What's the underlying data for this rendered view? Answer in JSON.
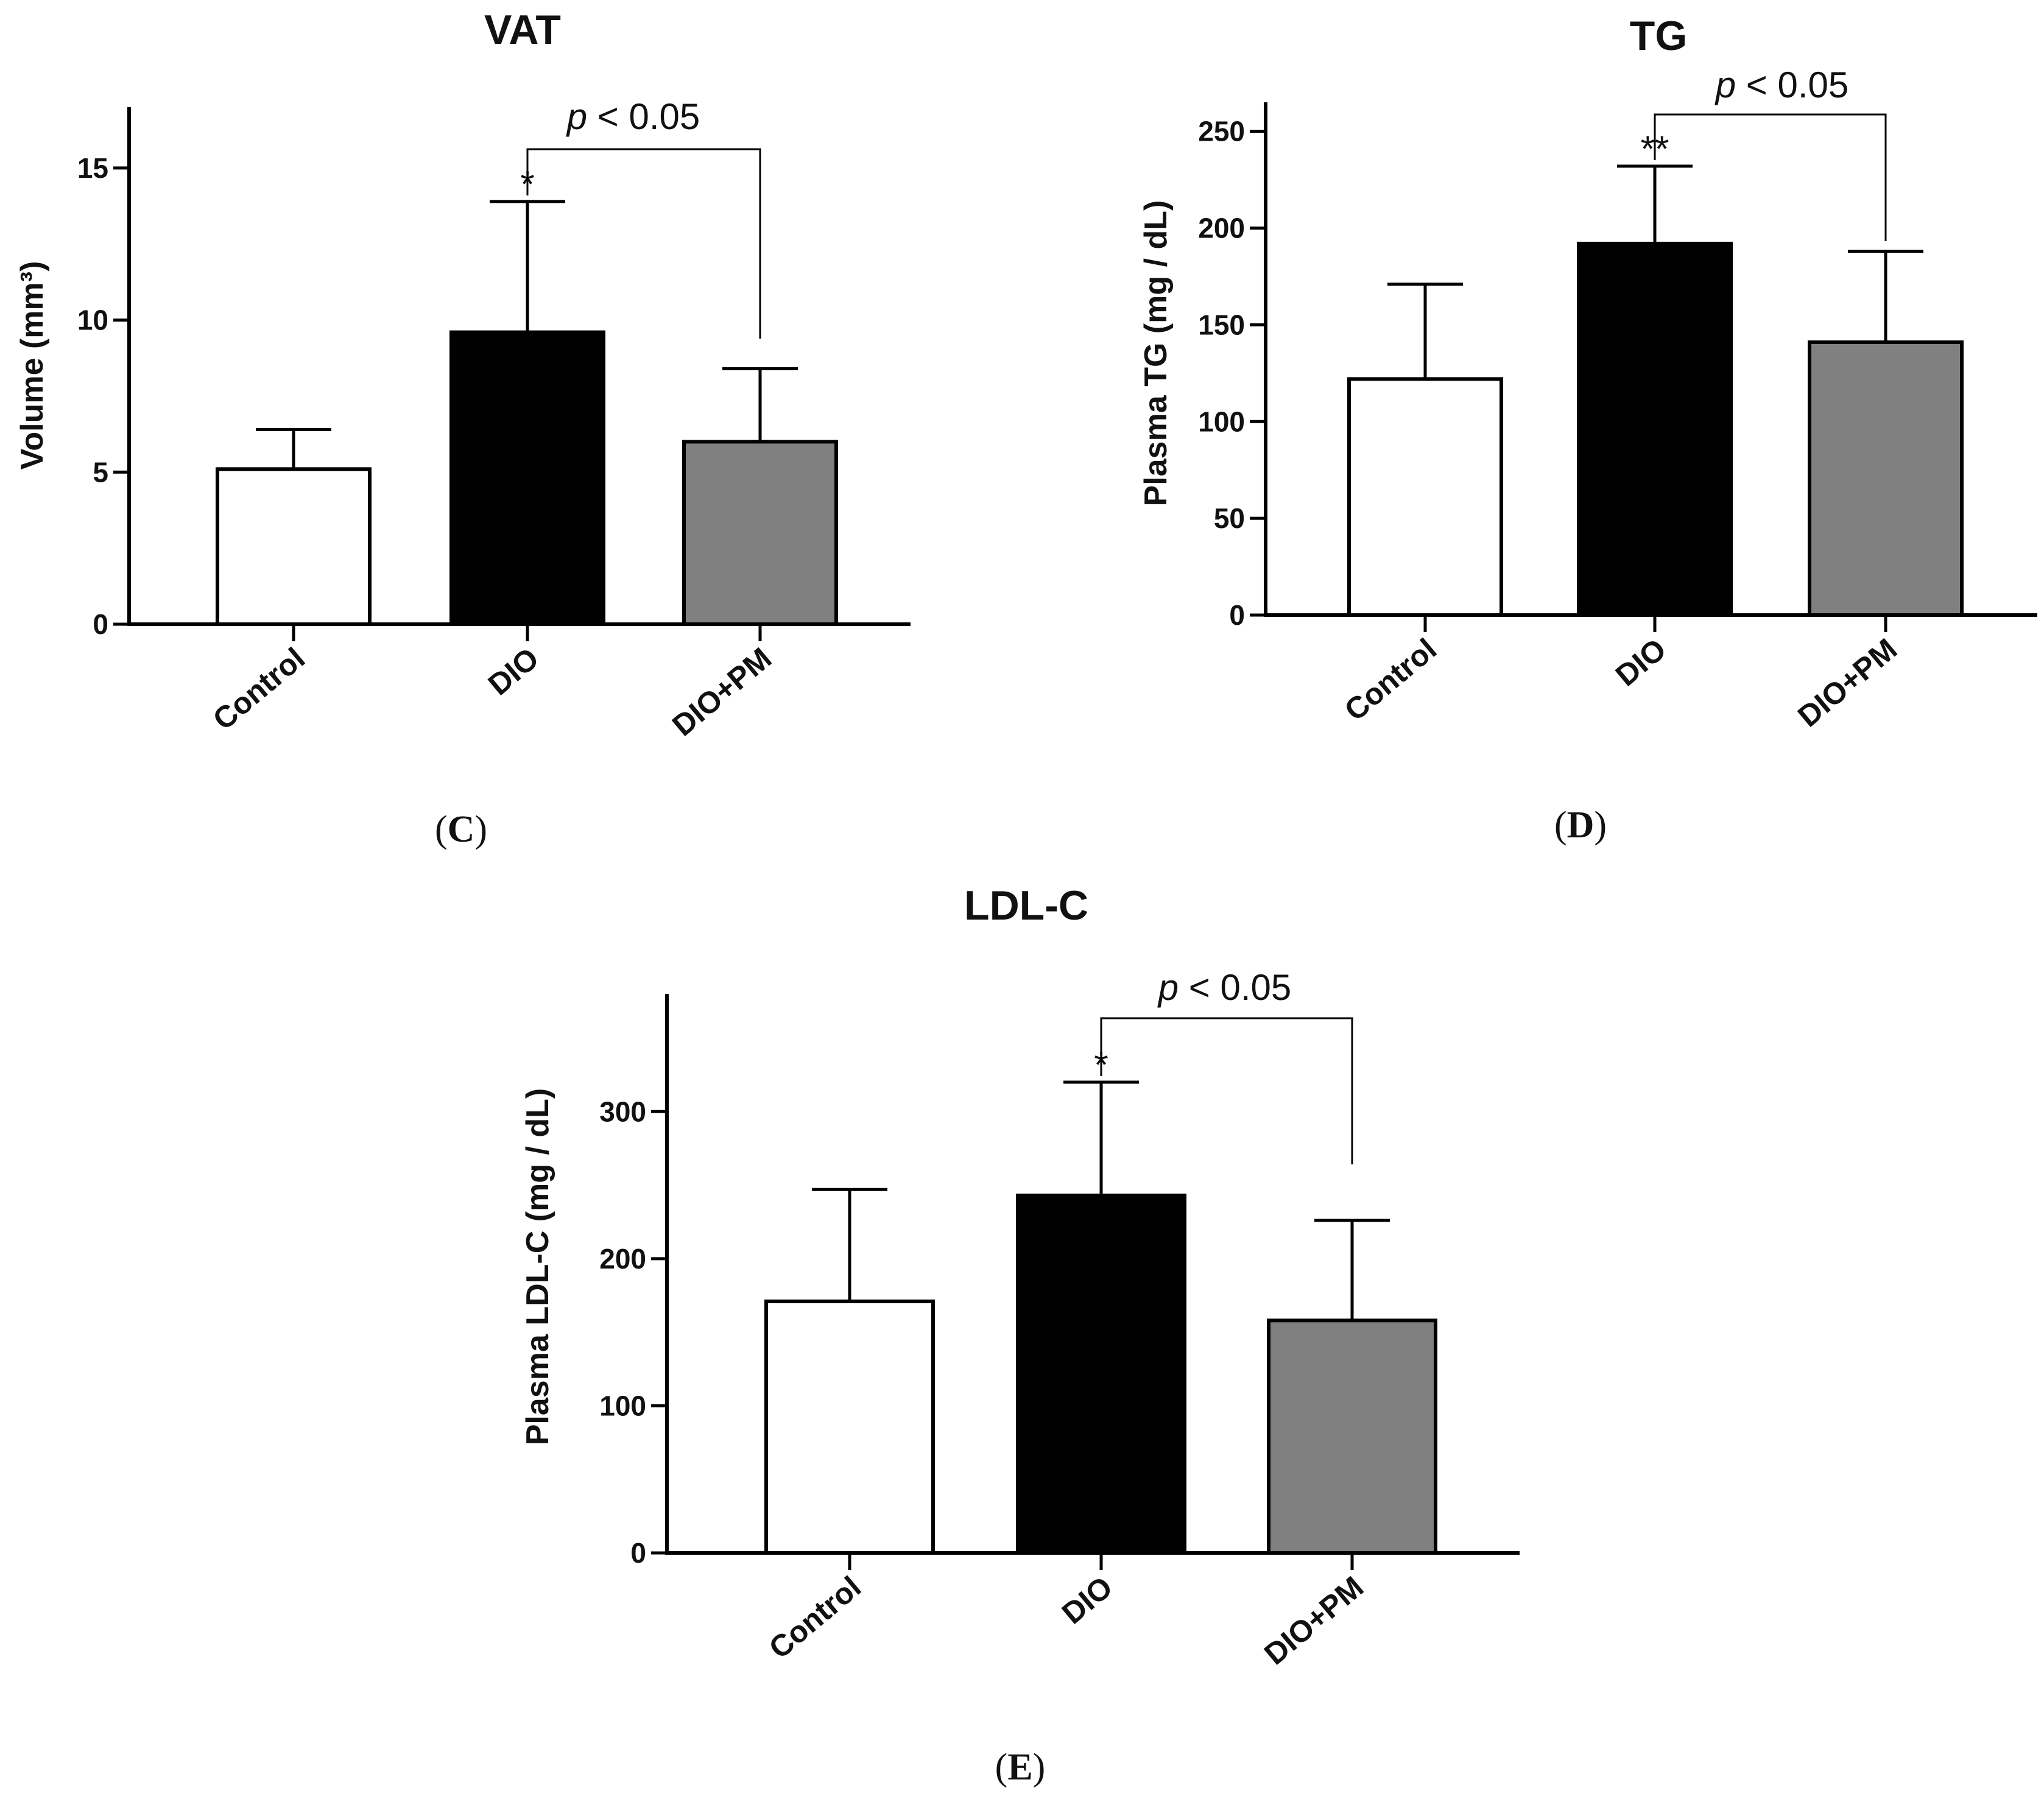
{
  "colors": {
    "control": "#ffffff",
    "dio": "#000000",
    "dio_pm": "#808080",
    "axis": "#000000"
  },
  "chart_data": [
    {
      "id": "C",
      "type": "bar",
      "panel_label": "(C)",
      "title": "VAT",
      "ylabel": "Volume (mm³)",
      "xlabel": "",
      "categories": [
        "Control",
        "DIO",
        "DIO+PM"
      ],
      "values": [
        5.1,
        9.6,
        6.0
      ],
      "errors": [
        1.3,
        4.3,
        2.4
      ],
      "ylim": [
        0,
        17
      ],
      "yticks": [
        0,
        5,
        10,
        15
      ],
      "grid": false,
      "annotations": [
        {
          "type": "star",
          "category": "DIO",
          "text": "*"
        },
        {
          "type": "bracket",
          "from": "DIO",
          "to": "DIO+PM",
          "text": "p < 0.05",
          "p": "p",
          "rest": " < 0.05"
        }
      ]
    },
    {
      "id": "D",
      "type": "bar",
      "panel_label": "(D)",
      "title": "TG",
      "ylabel": "Plasma TG (mg / dL)",
      "xlabel": "",
      "categories": [
        "Control",
        "DIO",
        "DIO+PM"
      ],
      "values": [
        122,
        192,
        141
      ],
      "errors": [
        49,
        40,
        47
      ],
      "ylim": [
        0,
        265
      ],
      "yticks": [
        0,
        50,
        100,
        150,
        200,
        250
      ],
      "grid": false,
      "annotations": [
        {
          "type": "star",
          "category": "DIO",
          "text": "**"
        },
        {
          "type": "bracket",
          "from": "DIO",
          "to": "DIO+PM",
          "text": "p < 0.05",
          "p": "p",
          "rest": " < 0.05"
        }
      ]
    },
    {
      "id": "E",
      "type": "bar",
      "panel_label": "(E)",
      "title": "LDL-C",
      "ylabel": "Plasma LDL-C (mg / dL)",
      "xlabel": "",
      "categories": [
        "Control",
        "DIO",
        "DIO+PM"
      ],
      "values": [
        171,
        243,
        158
      ],
      "errors": [
        76,
        77,
        68
      ],
      "ylim": [
        0,
        380
      ],
      "yticks": [
        0,
        100,
        200,
        300
      ],
      "grid": false,
      "annotations": [
        {
          "type": "star",
          "category": "DIO",
          "text": "*"
        },
        {
          "type": "bracket",
          "from": "DIO",
          "to": "DIO+PM",
          "text": "p < 0.05",
          "p": "p",
          "rest": " < 0.05"
        }
      ]
    }
  ]
}
